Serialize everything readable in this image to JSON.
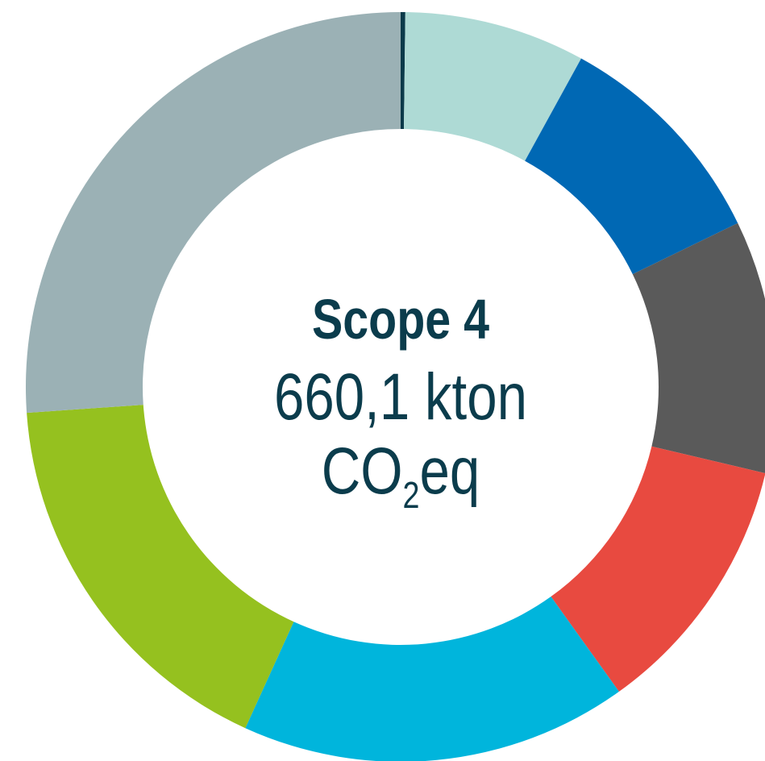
{
  "chart_data": {
    "type": "donut",
    "categories": [
      null,
      null,
      null,
      null,
      null,
      null,
      null,
      null
    ],
    "values": [
      0.2,
      7.8,
      9.8,
      10.9,
      11.4,
      16.7,
      17.1,
      26.1
    ],
    "colors": [
      "#0b3a4a",
      "#aedad5",
      "#0068b4",
      "#5a5a5a",
      "#e84a40",
      "#00b5dc",
      "#95c11f",
      "#9bb1b5"
    ],
    "center_label": {
      "title": "Scope 4",
      "value": "660,1 kton",
      "unit": [
        "CO",
        "2",
        "eq"
      ]
    }
  }
}
